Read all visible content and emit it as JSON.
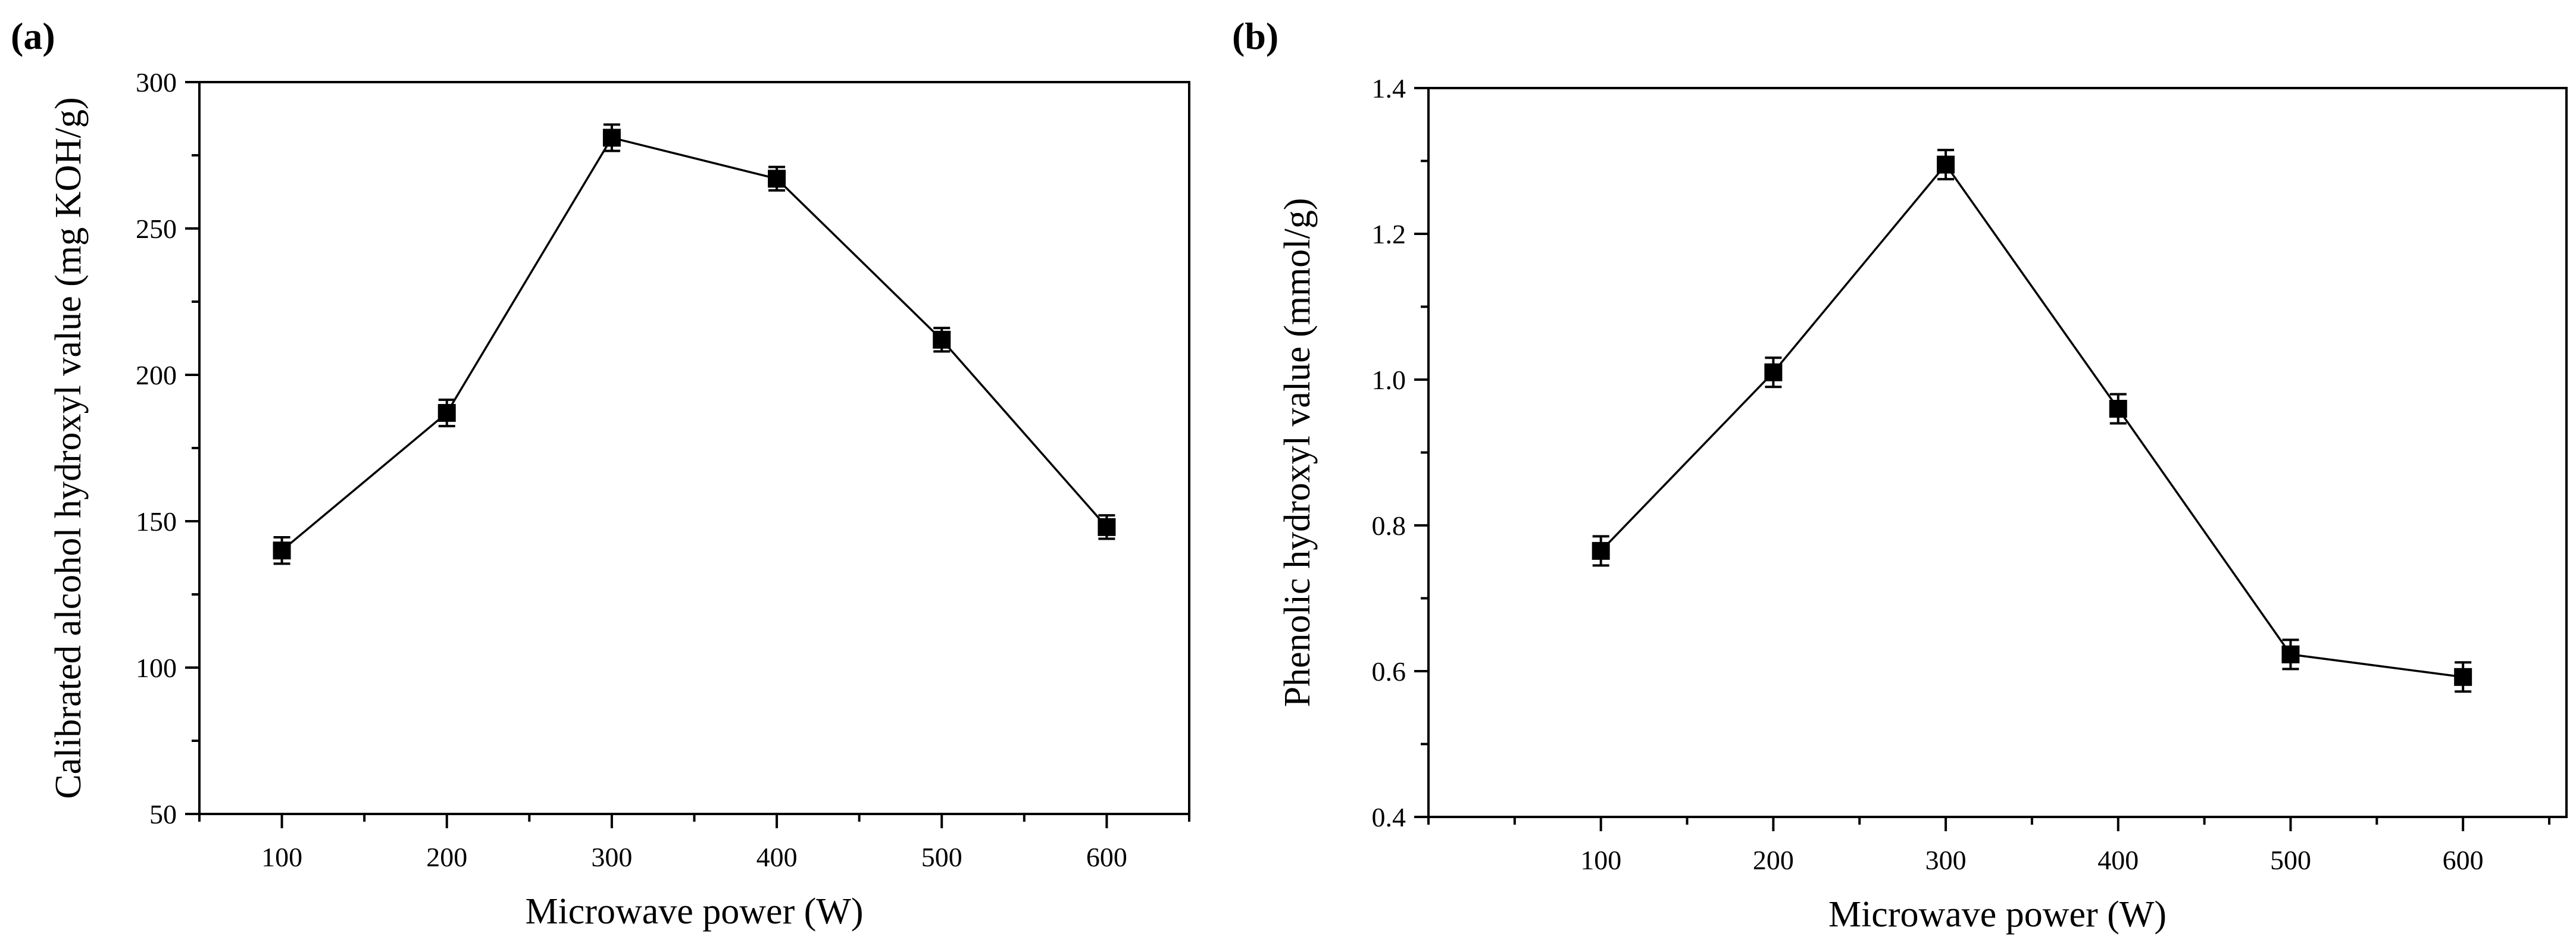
{
  "chart_data": [
    {
      "panel_label": "(a)",
      "type": "line",
      "xlabel": "Microwave power (W)",
      "ylabel": "Calibrated alcohol hydroxyl value (mg KOH/g)",
      "xlim": [
        50,
        650
      ],
      "ylim": [
        50,
        300
      ],
      "xticks": [
        100,
        200,
        300,
        400,
        500,
        600
      ],
      "yticks": [
        50,
        100,
        150,
        200,
        250,
        300
      ],
      "y_minor_step": 25,
      "x_minor_step": 50,
      "x": [
        100,
        200,
        300,
        400,
        500,
        600
      ],
      "values": [
        140,
        187,
        281,
        267,
        212,
        148
      ],
      "errors": [
        4.5,
        4.5,
        4.5,
        4,
        4,
        4
      ]
    },
    {
      "panel_label": "(b)",
      "type": "line",
      "xlabel": "Microwave power (W)",
      "ylabel": "Phenolic hydroxyl value (mmol/g)",
      "xlim": [
        0,
        660
      ],
      "ylim": [
        0.4,
        1.4
      ],
      "xticks": [
        100,
        200,
        300,
        400,
        500,
        600
      ],
      "yticks": [
        0.4,
        0.6,
        0.8,
        1.0,
        1.2,
        1.4
      ],
      "ytick_labels": [
        "0.4",
        "0.6",
        "0.8",
        "1.0",
        "1.2",
        "1.4"
      ],
      "y_minor_step": 0.1,
      "x_minor_step": 50,
      "x": [
        100,
        200,
        300,
        400,
        500,
        600
      ],
      "values": [
        0.765,
        1.01,
        1.295,
        0.96,
        0.623,
        0.592
      ],
      "errors": [
        0.02,
        0.02,
        0.02,
        0.02,
        0.02,
        0.02
      ]
    }
  ]
}
